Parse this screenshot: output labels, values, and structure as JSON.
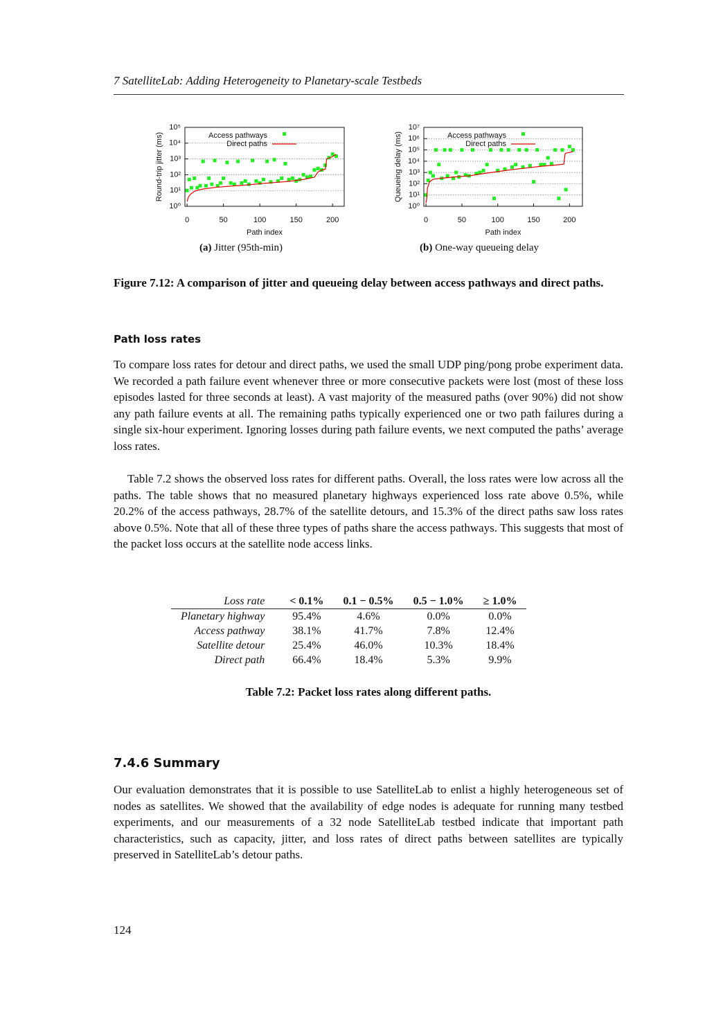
{
  "header": {
    "running_title": "7 SatelliteLab: Adding Heterogeneity to Planetary-scale Testbeds"
  },
  "chart_data": [
    {
      "type": "scatter",
      "xlabel": "Path index",
      "ylabel": "Round-trip jitter (ms)",
      "xlim": [
        -3,
        216
      ],
      "ylim": [
        1,
        100000
      ],
      "yscale": "log",
      "grid": true,
      "legend": "upper left",
      "xticks": [
        0,
        50,
        100,
        150,
        200
      ],
      "yticks": [
        {
          "value": 1,
          "label": "10⁰"
        },
        {
          "value": 10,
          "label": "10¹"
        },
        {
          "value": 100,
          "label": "10²"
        },
        {
          "value": 1000,
          "label": "10³"
        },
        {
          "value": 10000,
          "label": "10⁴"
        },
        {
          "value": 100000,
          "label": "10⁵"
        }
      ],
      "series": [
        {
          "name": "Access pathways",
          "color": "#22ee22",
          "marker": "square",
          "x": [
            0,
            3,
            6,
            10,
            14,
            18,
            22,
            26,
            30,
            34,
            38,
            42,
            46,
            50,
            55,
            60,
            65,
            70,
            75,
            80,
            85,
            90,
            95,
            100,
            105,
            110,
            115,
            120,
            125,
            130,
            135,
            140,
            145,
            150,
            155,
            160,
            165,
            170,
            175,
            180,
            185,
            190,
            195,
            200,
            205
          ],
          "values": [
            10,
            50,
            15,
            60,
            15,
            20,
            700,
            20,
            60,
            25,
            800,
            20,
            30,
            60,
            600,
            30,
            25,
            700,
            30,
            40,
            25,
            800,
            40,
            30,
            50,
            700,
            35,
            900,
            40,
            60,
            500,
            50,
            60,
            40,
            50,
            100,
            70,
            80,
            200,
            250,
            200,
            400,
            1200,
            2000,
            1500
          ]
        },
        {
          "name": "Direct paths",
          "color": "#dd0000",
          "marker": "line",
          "x": [
            0,
            2,
            5,
            10,
            20,
            40,
            60,
            80,
            100,
            120,
            140,
            160,
            175,
            180,
            185,
            190,
            192,
            200,
            205
          ],
          "values": [
            2,
            4,
            6,
            9,
            12,
            16,
            19,
            22,
            27,
            32,
            38,
            50,
            70,
            150,
            200,
            220,
            1000,
            1400,
            2000
          ]
        }
      ]
    },
    {
      "type": "scatter",
      "xlabel": "Path index",
      "ylabel": "Queueing delay (ms)",
      "xlim": [
        -3,
        218
      ],
      "ylim": [
        1,
        10000000
      ],
      "yscale": "log",
      "grid": true,
      "legend": "upper left",
      "xticks": [
        0,
        50,
        100,
        150,
        200
      ],
      "yticks": [
        {
          "value": 1,
          "label": "10⁰"
        },
        {
          "value": 10,
          "label": "10¹"
        },
        {
          "value": 100,
          "label": "10²"
        },
        {
          "value": 1000,
          "label": "10³"
        },
        {
          "value": 10000,
          "label": "10⁴"
        },
        {
          "value": 100000,
          "label": "10⁵"
        },
        {
          "value": 1000000,
          "label": "10⁶"
        },
        {
          "value": 10000000,
          "label": "10⁷"
        }
      ],
      "series": [
        {
          "name": "Access pathways",
          "color": "#22ee22",
          "marker": "square",
          "x": [
            0,
            3,
            6,
            10,
            14,
            18,
            22,
            26,
            30,
            34,
            38,
            42,
            46,
            50,
            55,
            60,
            65,
            70,
            75,
            80,
            85,
            90,
            95,
            100,
            105,
            110,
            115,
            120,
            125,
            130,
            135,
            140,
            145,
            150,
            155,
            160,
            165,
            170,
            175,
            180,
            185,
            190,
            195,
            200,
            205
          ],
          "values": [
            10,
            200,
            1000,
            500,
            100000,
            5000,
            300,
            100000,
            500,
            100000,
            300,
            1000,
            400,
            100000,
            600,
            500,
            100000,
            800,
            1000,
            1500,
            5000,
            100000,
            5,
            1500,
            100000,
            2000,
            100000,
            3000,
            5000,
            100000,
            3000,
            100000,
            4000,
            150,
            100000,
            5000,
            5000,
            20000,
            6000,
            100000,
            5,
            100000,
            30,
            200000,
            100000
          ]
        },
        {
          "name": "Direct paths",
          "color": "#dd0000",
          "marker": "line",
          "x": [
            0,
            1,
            2,
            5,
            10,
            20,
            40,
            60,
            80,
            100,
            120,
            140,
            160,
            180,
            192,
            194,
            200,
            205
          ],
          "values": [
            2,
            5,
            40,
            150,
            250,
            300,
            400,
            500,
            800,
            1200,
            1800,
            2500,
            3500,
            4500,
            5500,
            50000,
            60000,
            70000
          ]
        }
      ]
    }
  ],
  "figure": {
    "subcaptions": [
      {
        "label": "(a)",
        "text": "Jitter (95th-min)"
      },
      {
        "label": "(b)",
        "text": "One-way queueing delay"
      }
    ],
    "caption": "Figure 7.12: A comparison of jitter and queueing delay between access pathways and direct paths."
  },
  "section": {
    "heading": "Path loss rates",
    "paragraphs": [
      "To compare loss rates for detour and direct paths, we used the small UDP ping/pong probe experiment data. We recorded a path failure event whenever three or more consecutive packets were lost (most of these loss episodes lasted for three seconds at least). A vast majority of the measured paths (over 90%) did not show any path failure events at all. The remaining paths typically experienced one or two path failures during a single six-hour experiment. Ignoring losses during path failure events, we next computed the paths’ average loss rates.",
      "Table 7.2 shows the observed loss rates for different paths. Overall, the loss rates were low across all the paths. The table shows that no measured planetary highways experienced loss rate above 0.5%, while 20.2% of the access pathways, 28.7% of the satellite detours, and 15.3% of the direct paths saw loss rates above 0.5%. Note that all of these three types of paths share the access pathways. This suggests that most of the packet loss occurs at the satellite node access links."
    ]
  },
  "table": {
    "header": [
      "Loss rate",
      "< 0.1%",
      "0.1 − 0.5%",
      "0.5 − 1.0%",
      "≥ 1.0%"
    ],
    "rows": [
      [
        "Planetary highway",
        "95.4%",
        "4.6%",
        "0.0%",
        "0.0%"
      ],
      [
        "Access pathway",
        "38.1%",
        "41.7%",
        "7.8%",
        "12.4%"
      ],
      [
        "Satellite detour",
        "25.4%",
        "46.0%",
        "10.3%",
        "18.4%"
      ],
      [
        "Direct path",
        "66.4%",
        "18.4%",
        "5.3%",
        "9.9%"
      ]
    ],
    "caption": "Table 7.2: Packet loss rates along different paths."
  },
  "summary": {
    "heading": "7.4.6 Summary",
    "paragraph": "Our evaluation demonstrates that it is possible to use SatelliteLab to enlist a highly heterogeneous set of nodes as satellites. We showed that the availability of edge nodes is adequate for running many testbed experiments, and our measurements of a 32 node SatelliteLab testbed indicate that important path characteristics, such as capacity, jitter, and loss rates of direct paths between satellites are typically preserved in SatelliteLab’s detour paths."
  },
  "page_number": "124"
}
